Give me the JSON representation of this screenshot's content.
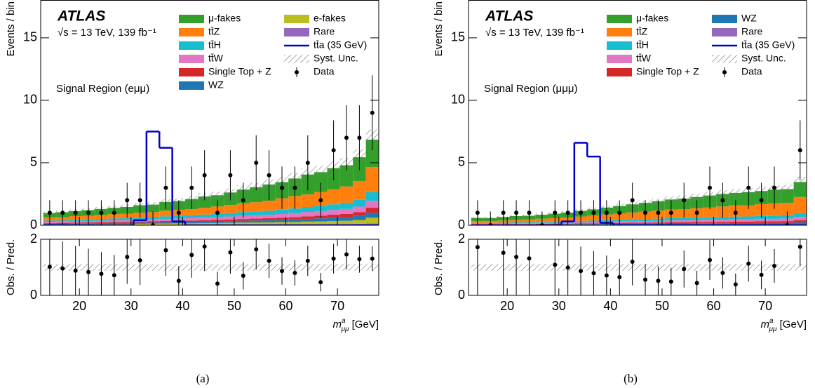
{
  "chart_data": [
    {
      "type": "histogram",
      "caption": "(a)",
      "title": "ATLAS",
      "subtitle": "√s = 13 TeV, 139 fb⁻¹",
      "annotation": "Signal Region (eμμ)",
      "ylabel": "Events / bin",
      "xlabel": {
        "symbol": "m",
        "sup": "a",
        "sub": "μμ",
        "unit": " [GeV]"
      },
      "bins": [
        13,
        15.5,
        18,
        20.5,
        23,
        25.5,
        28,
        30.5,
        33,
        35.5,
        38,
        40.5,
        43,
        45.5,
        48,
        50.5,
        53,
        55.5,
        58,
        60.5,
        63,
        65.5,
        68,
        70.5,
        73,
        75.5,
        78
      ],
      "xlim": [
        12.5,
        78
      ],
      "xticks": [
        20,
        30,
        40,
        50,
        60,
        70
      ],
      "ylim": [
        0,
        18
      ],
      "yticks": [
        0,
        5,
        10,
        15
      ],
      "series": [
        {
          "name": "μ-fakes",
          "color": "#33a02c",
          "values": [
            0.35,
            0.4,
            0.4,
            0.45,
            0.5,
            0.5,
            0.55,
            0.6,
            0.6,
            0.7,
            0.7,
            0.8,
            0.9,
            0.9,
            1.0,
            1.1,
            1.2,
            1.3,
            1.3,
            1.4,
            1.6,
            1.6,
            1.7,
            1.7,
            1.9,
            2.2
          ]
        },
        {
          "name": "tt̄Z",
          "color": "#ff7f0e",
          "values": [
            0.25,
            0.25,
            0.3,
            0.3,
            0.3,
            0.35,
            0.35,
            0.4,
            0.4,
            0.45,
            0.5,
            0.5,
            0.55,
            0.6,
            0.65,
            0.7,
            0.75,
            0.8,
            0.9,
            1.0,
            1.0,
            1.1,
            1.2,
            1.3,
            1.5,
            2.0
          ]
        },
        {
          "name": "tt̄H",
          "color": "#17becf",
          "values": [
            0.1,
            0.1,
            0.12,
            0.12,
            0.14,
            0.15,
            0.15,
            0.16,
            0.18,
            0.2,
            0.2,
            0.22,
            0.24,
            0.25,
            0.27,
            0.3,
            0.3,
            0.32,
            0.35,
            0.38,
            0.4,
            0.42,
            0.45,
            0.5,
            0.55,
            0.7
          ]
        },
        {
          "name": "tt̄W",
          "color": "#e377c2",
          "values": [
            0.1,
            0.1,
            0.1,
            0.12,
            0.12,
            0.13,
            0.14,
            0.15,
            0.16,
            0.17,
            0.18,
            0.2,
            0.2,
            0.22,
            0.24,
            0.25,
            0.26,
            0.28,
            0.3,
            0.32,
            0.35,
            0.36,
            0.38,
            0.4,
            0.45,
            0.55
          ]
        },
        {
          "name": "Single Top + Z",
          "color": "#d62728",
          "values": [
            0.05,
            0.05,
            0.06,
            0.06,
            0.07,
            0.07,
            0.08,
            0.08,
            0.09,
            0.1,
            0.1,
            0.11,
            0.12,
            0.12,
            0.13,
            0.14,
            0.15,
            0.16,
            0.17,
            0.18,
            0.2,
            0.22,
            0.24,
            0.26,
            0.3,
            0.4
          ]
        },
        {
          "name": "WZ",
          "color": "#1f77b4",
          "values": [
            0.05,
            0.06,
            0.06,
            0.07,
            0.07,
            0.08,
            0.08,
            0.09,
            0.09,
            0.1,
            0.1,
            0.11,
            0.12,
            0.13,
            0.14,
            0.15,
            0.16,
            0.17,
            0.18,
            0.2,
            0.22,
            0.24,
            0.26,
            0.28,
            0.32,
            0.4
          ]
        },
        {
          "name": "e-fakes",
          "color": "#bcbd22",
          "values": [
            0.05,
            0.05,
            0.06,
            0.06,
            0.06,
            0.07,
            0.07,
            0.08,
            0.08,
            0.09,
            0.1,
            0.1,
            0.11,
            0.12,
            0.13,
            0.14,
            0.15,
            0.16,
            0.17,
            0.18,
            0.2,
            0.22,
            0.24,
            0.26,
            0.3,
            0.45
          ]
        },
        {
          "name": "Rare",
          "color": "#9467bd",
          "values": [
            0.03,
            0.03,
            0.03,
            0.03,
            0.04,
            0.04,
            0.04,
            0.04,
            0.05,
            0.05,
            0.05,
            0.05,
            0.06,
            0.06,
            0.06,
            0.07,
            0.07,
            0.07,
            0.08,
            0.08,
            0.09,
            0.09,
            0.1,
            0.1,
            0.12,
            0.15
          ]
        }
      ],
      "signal": {
        "name": "tt̄a (35 GeV)",
        "color": "#0000cc",
        "values": [
          0,
          0,
          0,
          0,
          0,
          0,
          0,
          0.4,
          7.5,
          6.2,
          0.3,
          0,
          0,
          0,
          0,
          0,
          0,
          0,
          0,
          0,
          0,
          0,
          0,
          0,
          0,
          0
        ]
      },
      "syst": {
        "name": "Syst. Unc.",
        "rel": 0.12
      },
      "data": {
        "name": "Data",
        "values": [
          1,
          1,
          1,
          1,
          1,
          1,
          2,
          2,
          0,
          3,
          1,
          3,
          4,
          1,
          4,
          2,
          5,
          4,
          3,
          3,
          5,
          2,
          6,
          7,
          7,
          9
        ],
        "errors": [
          1,
          1,
          1,
          1,
          1,
          1,
          1.4,
          1.4,
          1.1,
          1.7,
          1,
          1.7,
          2,
          1,
          2,
          1.4,
          2.2,
          2,
          1.7,
          1.7,
          2.2,
          1.4,
          2.4,
          2.6,
          2.6,
          3
        ]
      },
      "ratio": {
        "ylabel": "Obs. / Pred.",
        "ylim": [
          0,
          2
        ],
        "yticks": [
          0,
          2
        ],
        "values": [
          1.02,
          0.96,
          0.88,
          0.83,
          0.77,
          0.72,
          1.37,
          1.25,
          null,
          1.61,
          0.52,
          1.44,
          1.74,
          0.42,
          1.53,
          0.7,
          1.64,
          1.23,
          0.87,
          0.8,
          1.23,
          0.47,
          1.31,
          1.46,
          1.29,
          1.31
        ],
        "errors": [
          1.02,
          0.96,
          0.88,
          0.83,
          0.77,
          0.72,
          0.96,
          0.88,
          null,
          0.91,
          0.52,
          0.81,
          0.87,
          0.42,
          0.76,
          0.49,
          0.72,
          0.61,
          0.49,
          0.45,
          0.54,
          0.33,
          0.53,
          0.54,
          0.48,
          0.44
        ]
      }
    },
    {
      "type": "histogram",
      "caption": "(b)",
      "title": "ATLAS",
      "subtitle": "√s = 13 TeV, 139 fb⁻¹",
      "annotation": "Signal Region (μμμ)",
      "ylabel": "Events / bin",
      "xlabel": {
        "symbol": "m",
        "sup": "a",
        "sub": "μμ",
        "unit": " [GeV]"
      },
      "bins": [
        13,
        15.5,
        18,
        20.5,
        23,
        25.5,
        28,
        30.5,
        33,
        35.5,
        38,
        40.5,
        43,
        45.5,
        48,
        50.5,
        53,
        55.5,
        58,
        60.5,
        63,
        65.5,
        68,
        70.5,
        73,
        75.5,
        78
      ],
      "xlim": [
        12.5,
        78
      ],
      "xticks": [
        20,
        30,
        40,
        50,
        60,
        70
      ],
      "ylim": [
        0,
        18
      ],
      "yticks": [
        0,
        5,
        10,
        15
      ],
      "series": [
        {
          "name": "μ-fakes",
          "color": "#33a02c",
          "values": [
            0.25,
            0.25,
            0.28,
            0.3,
            0.3,
            0.32,
            0.35,
            0.4,
            0.45,
            0.5,
            0.55,
            0.6,
            0.65,
            0.7,
            0.75,
            0.8,
            0.85,
            0.9,
            0.95,
            1.0,
            1.0,
            1.05,
            1.05,
            1.1,
            1.1,
            1.2
          ]
        },
        {
          "name": "tt̄Z",
          "color": "#ff7f0e",
          "values": [
            0.15,
            0.15,
            0.18,
            0.2,
            0.22,
            0.25,
            0.28,
            0.3,
            0.35,
            0.4,
            0.45,
            0.5,
            0.55,
            0.6,
            0.65,
            0.7,
            0.7,
            0.75,
            0.8,
            0.85,
            0.9,
            0.9,
            0.95,
            1.0,
            1.0,
            1.3
          ]
        },
        {
          "name": "tt̄H",
          "color": "#17becf",
          "values": [
            0.05,
            0.05,
            0.06,
            0.07,
            0.08,
            0.08,
            0.09,
            0.1,
            0.11,
            0.12,
            0.13,
            0.14,
            0.15,
            0.16,
            0.17,
            0.18,
            0.19,
            0.2,
            0.2,
            0.21,
            0.22,
            0.22,
            0.23,
            0.24,
            0.25,
            0.3
          ]
        },
        {
          "name": "tt̄W",
          "color": "#e377c2",
          "values": [
            0.05,
            0.05,
            0.05,
            0.06,
            0.06,
            0.07,
            0.07,
            0.08,
            0.09,
            0.1,
            0.1,
            0.11,
            0.12,
            0.13,
            0.14,
            0.15,
            0.15,
            0.16,
            0.17,
            0.18,
            0.18,
            0.19,
            0.2,
            0.2,
            0.21,
            0.25
          ]
        },
        {
          "name": "Single Top + Z",
          "color": "#d62728",
          "values": [
            0.03,
            0.03,
            0.03,
            0.04,
            0.04,
            0.04,
            0.05,
            0.05,
            0.06,
            0.06,
            0.07,
            0.07,
            0.08,
            0.08,
            0.09,
            0.09,
            0.1,
            0.1,
            0.11,
            0.11,
            0.12,
            0.12,
            0.13,
            0.13,
            0.14,
            0.18
          ]
        },
        {
          "name": "WZ",
          "color": "#1f77b4",
          "values": [
            0.03,
            0.03,
            0.04,
            0.04,
            0.04,
            0.05,
            0.05,
            0.05,
            0.06,
            0.06,
            0.07,
            0.07,
            0.08,
            0.08,
            0.08,
            0.09,
            0.09,
            0.1,
            0.1,
            0.1,
            0.11,
            0.11,
            0.12,
            0.12,
            0.13,
            0.15
          ]
        },
        {
          "name": "Rare",
          "color": "#9467bd",
          "values": [
            0.02,
            0.02,
            0.02,
            0.02,
            0.02,
            0.03,
            0.03,
            0.03,
            0.03,
            0.03,
            0.04,
            0.04,
            0.04,
            0.04,
            0.04,
            0.05,
            0.05,
            0.05,
            0.05,
            0.05,
            0.06,
            0.06,
            0.06,
            0.06,
            0.06,
            0.08
          ]
        }
      ],
      "signal": {
        "name": "tt̄a (35 GeV)",
        "color": "#0000cc",
        "values": [
          0,
          0,
          0,
          0,
          0,
          0,
          0,
          0.3,
          6.6,
          5.5,
          0.2,
          0,
          0,
          0,
          0,
          0,
          0,
          0,
          0,
          0,
          0,
          0,
          0,
          0,
          0,
          0
        ]
      },
      "syst": {
        "name": "Syst. Unc.",
        "rel": 0.12
      },
      "data": {
        "name": "Data",
        "values": [
          1,
          0,
          1,
          1,
          1,
          0,
          1,
          1,
          1,
          1,
          1,
          1,
          2,
          1,
          1,
          1,
          2,
          1,
          3,
          2,
          1,
          3,
          2,
          3,
          0,
          6
        ],
        "errors": [
          1,
          1.1,
          1,
          1,
          1,
          1.1,
          1,
          1,
          1,
          1,
          1,
          1,
          1.4,
          1,
          1,
          1,
          1.4,
          1,
          1.7,
          1.4,
          1,
          1.7,
          1.4,
          1.7,
          1.1,
          2.4
        ]
      },
      "ratio": {
        "ylabel": "Obs. / Pred.",
        "ylim": [
          0,
          2
        ],
        "yticks": [
          0,
          2
        ],
        "values": [
          1.72,
          null,
          1.52,
          1.37,
          1.32,
          null,
          1.09,
          0.99,
          0.87,
          0.79,
          0.71,
          0.65,
          1.2,
          0.56,
          0.52,
          0.49,
          0.94,
          0.44,
          1.26,
          0.8,
          0.39,
          1.13,
          0.73,
          1.05,
          null,
          1.73
        ],
        "errors": [
          1.72,
          null,
          1.52,
          1.37,
          1.32,
          null,
          1.09,
          0.99,
          0.87,
          0.79,
          0.71,
          0.65,
          0.84,
          0.56,
          0.52,
          0.49,
          0.66,
          0.44,
          0.71,
          0.56,
          0.39,
          0.64,
          0.51,
          0.6,
          null,
          0.69
        ]
      }
    }
  ]
}
